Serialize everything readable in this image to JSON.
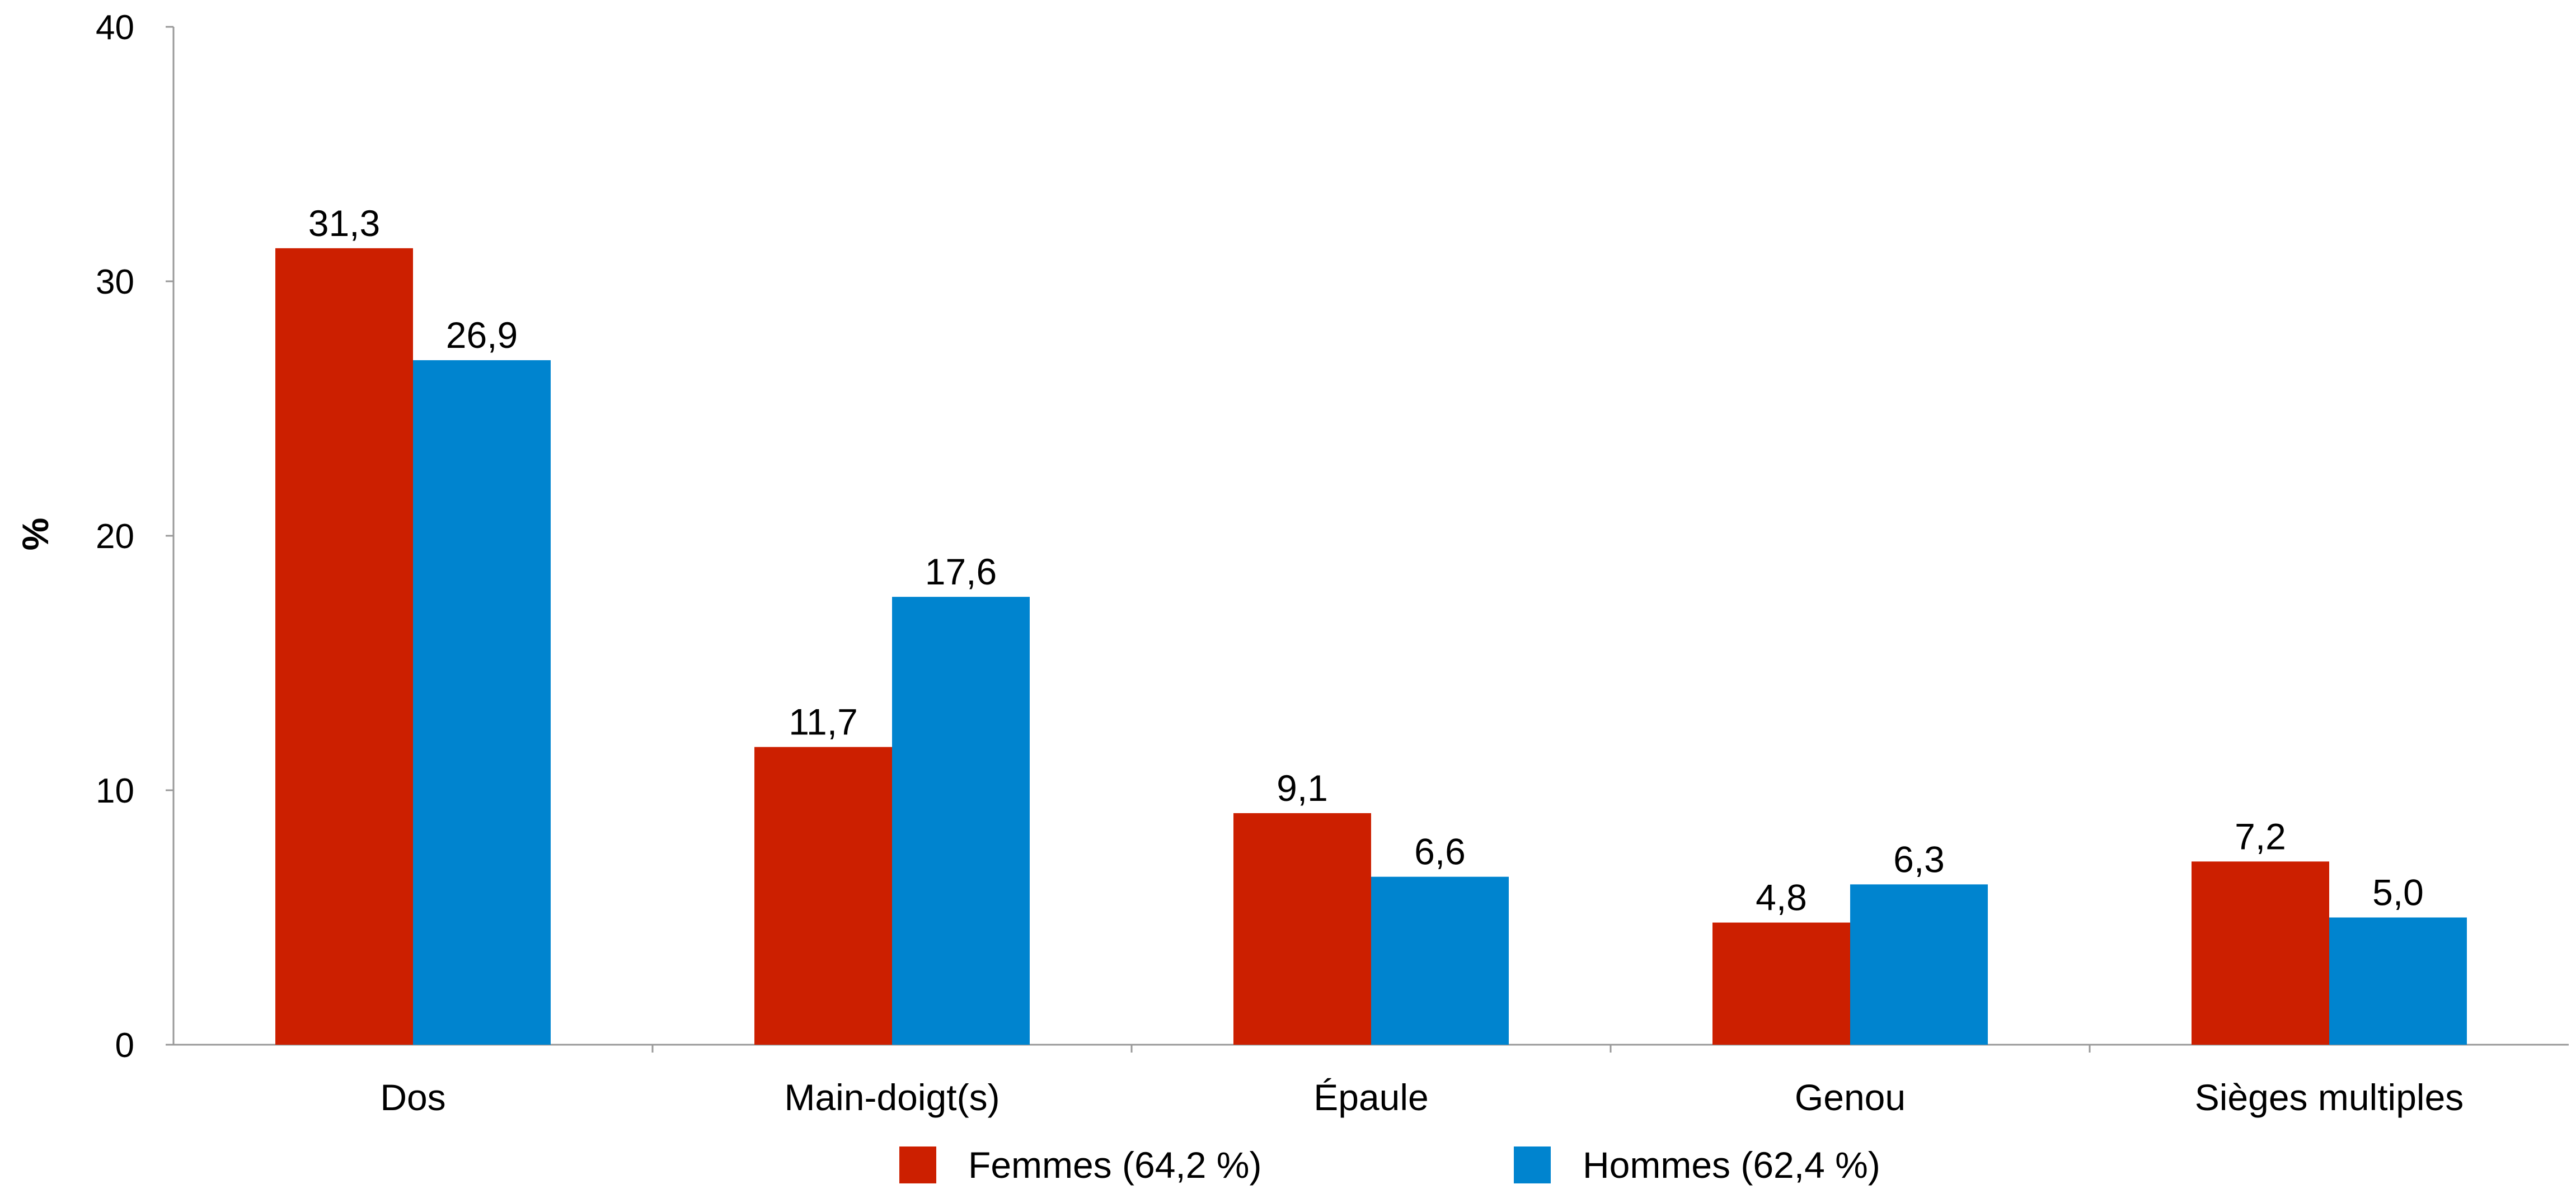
{
  "chart_data": {
    "type": "bar",
    "categories": [
      "Dos",
      "Main-doigt(s)",
      "Épaule",
      "Genou",
      "Sièges multiples"
    ],
    "series": [
      {
        "name": "Femmes (64,2 %)",
        "values": [
          31.3,
          11.7,
          9.1,
          4.8,
          7.2
        ],
        "labels": [
          "31,3",
          "11,7",
          "9,1",
          "4,8",
          "7,2"
        ],
        "color": "#CC1F00"
      },
      {
        "name": "Hommes (62,4 %)",
        "values": [
          26.9,
          17.6,
          6.6,
          6.3,
          5.0
        ],
        "labels": [
          "26,9",
          "17,6",
          "6,6",
          "6,3",
          "5,0"
        ],
        "color": "#0084CF"
      }
    ],
    "ylabel": "%",
    "ylim": [
      0,
      40
    ],
    "yticks": [
      "0",
      "10",
      "20",
      "30",
      "40"
    ],
    "grid": false,
    "legend_position": "bottom"
  }
}
